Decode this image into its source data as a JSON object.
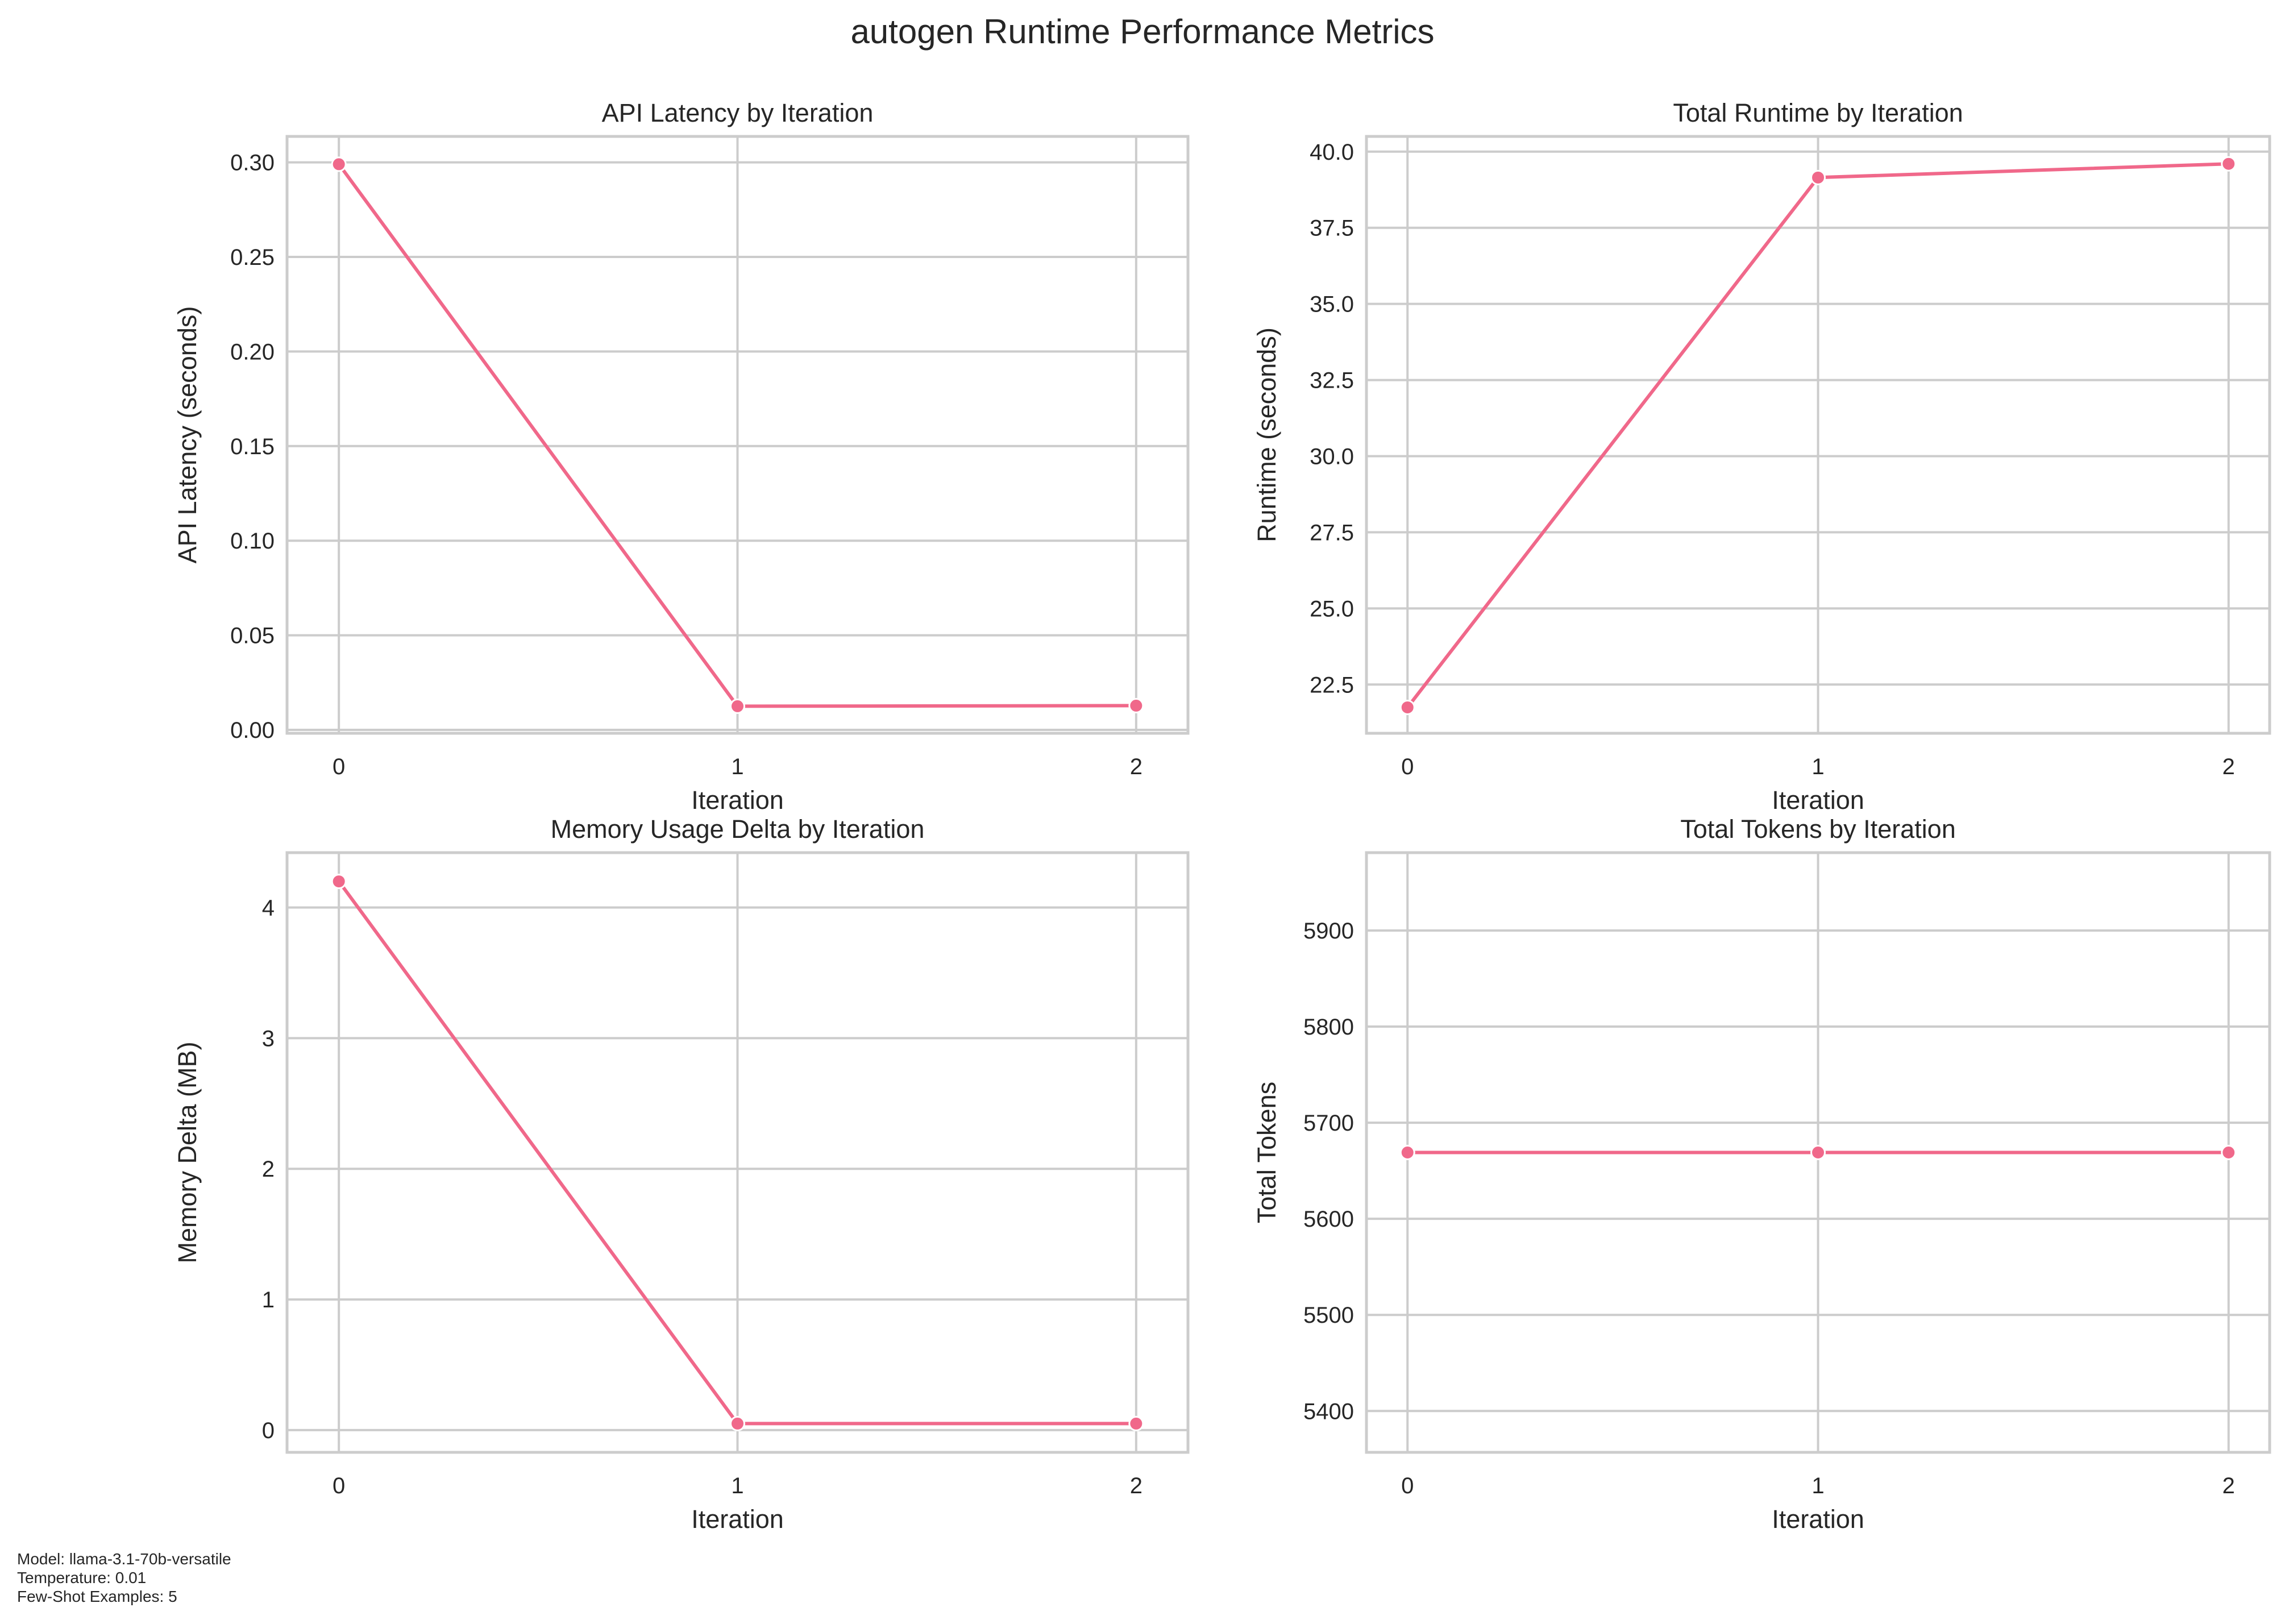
{
  "figure": {
    "title": "autogen Runtime Performance Metrics",
    "line_color": "#f0688a",
    "footer": [
      "Model: llama-3.1-70b-versatile",
      "Temperature: 0.01",
      "Few-Shot Examples: 5"
    ]
  },
  "chart_data": [
    {
      "type": "line",
      "title": "API Latency by Iteration",
      "xlabel": "Iteration",
      "ylabel": "API Latency (seconds)",
      "x": [
        0,
        1,
        2
      ],
      "y": [
        0.299,
        0.0125,
        0.0128
      ],
      "xlim": [
        -0.13,
        2.13
      ],
      "ylim": [
        -0.0018,
        0.3137
      ],
      "xticks": [
        0,
        1,
        2
      ],
      "xtick_labels": [
        "0",
        "1",
        "2"
      ],
      "yticks": [
        0.0,
        0.05,
        0.1,
        0.15,
        0.2,
        0.25,
        0.3
      ],
      "ytick_labels": [
        "0.00",
        "0.05",
        "0.10",
        "0.15",
        "0.20",
        "0.25",
        "0.30"
      ],
      "grid": true,
      "marker": "circle"
    },
    {
      "type": "line",
      "title": "Total Runtime by Iteration",
      "xlabel": "Iteration",
      "ylabel": "Runtime (seconds)",
      "x": [
        0,
        1,
        2
      ],
      "y": [
        21.75,
        39.15,
        39.6
      ],
      "xlim": [
        -0.1,
        2.1
      ],
      "ylim": [
        20.9,
        40.5
      ],
      "xticks": [
        0,
        1,
        2
      ],
      "xtick_labels": [
        "0",
        "1",
        "2"
      ],
      "yticks": [
        22.5,
        25.0,
        27.5,
        30.0,
        32.5,
        35.0,
        37.5,
        40.0
      ],
      "ytick_labels": [
        "22.5",
        "25.0",
        "27.5",
        "30.0",
        "32.5",
        "35.0",
        "37.5",
        "40.0"
      ],
      "grid": true,
      "marker": "circle"
    },
    {
      "type": "line",
      "title": "Memory Usage Delta by Iteration",
      "xlabel": "Iteration",
      "ylabel": "Memory Delta (MB)",
      "x": [
        0,
        1,
        2
      ],
      "y": [
        4.2,
        0.05,
        0.05
      ],
      "xlim": [
        -0.13,
        2.13
      ],
      "ylim": [
        -0.17,
        4.42
      ],
      "xticks": [
        0,
        1,
        2
      ],
      "xtick_labels": [
        "0",
        "1",
        "2"
      ],
      "yticks": [
        0,
        1,
        2,
        3,
        4
      ],
      "ytick_labels": [
        "0",
        "1",
        "2",
        "3",
        "4"
      ],
      "grid": true,
      "marker": "circle"
    },
    {
      "type": "line",
      "title": "Total Tokens by Iteration",
      "xlabel": "Iteration",
      "ylabel": "Total Tokens",
      "x": [
        0,
        1,
        2
      ],
      "y": [
        5669,
        5669,
        5669
      ],
      "xlim": [
        -0.1,
        2.1
      ],
      "ylim": [
        5357,
        5981
      ],
      "xticks": [
        0,
        1,
        2
      ],
      "xtick_labels": [
        "0",
        "1",
        "2"
      ],
      "yticks": [
        5400,
        5500,
        5600,
        5700,
        5800,
        5900
      ],
      "ytick_labels": [
        "5400",
        "5500",
        "5600",
        "5700",
        "5800",
        "5900"
      ],
      "grid": true,
      "marker": "circle"
    }
  ]
}
